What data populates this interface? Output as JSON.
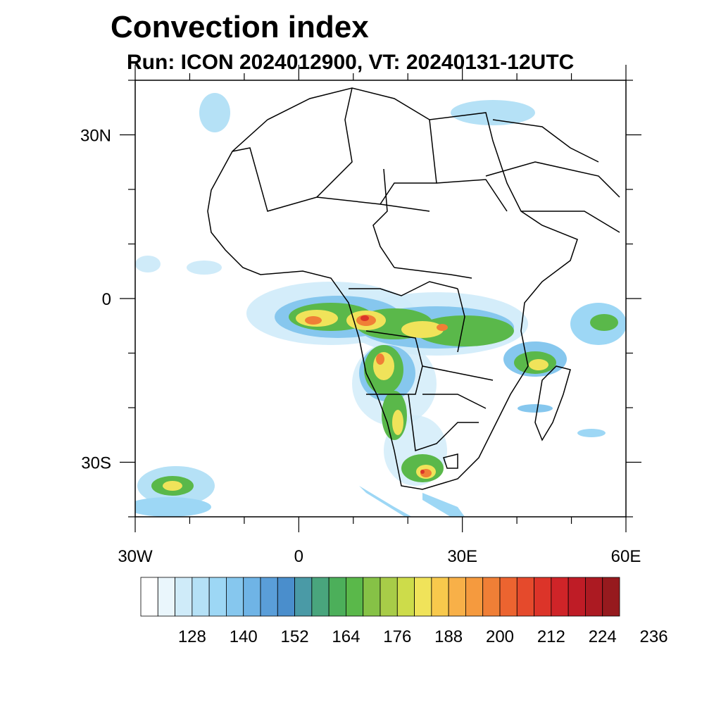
{
  "title": "Convection index",
  "subtitle": "Run: ICON 2024012900,  VT: 20240131-12UTC",
  "axes": {
    "lon_min": -30,
    "lon_max": 60,
    "lat_min": -40,
    "lat_max": 40,
    "lon_ticks": [
      {
        "value": -30,
        "label": "30W"
      },
      {
        "value": 0,
        "label": "0"
      },
      {
        "value": 30,
        "label": "30E"
      },
      {
        "value": 60,
        "label": "60E"
      }
    ],
    "lat_ticks": [
      {
        "value": 30,
        "label": "30N"
      },
      {
        "value": 0,
        "label": "0"
      },
      {
        "value": -30,
        "label": "30S"
      }
    ]
  },
  "colorbar": {
    "colors": [
      "#ffffff",
      "#eaf6fc",
      "#cfebf9",
      "#b5e1f6",
      "#9dd7f5",
      "#86c7ee",
      "#6fb4e6",
      "#5a9ed9",
      "#4a8ecc",
      "#4a9aa6",
      "#49a57d",
      "#4caf5a",
      "#5ab84a",
      "#86c246",
      "#a8cc48",
      "#cddc4a",
      "#f0e35a",
      "#f8c94c",
      "#f8b048",
      "#f59a3e",
      "#f07f36",
      "#ec6430",
      "#e54a2c",
      "#dc3429",
      "#cf2428",
      "#bf1c26",
      "#ac1a22",
      "#961a1e"
    ],
    "labels": [
      "128",
      "140",
      "152",
      "164",
      "176",
      "188",
      "200",
      "212",
      "224",
      "236"
    ]
  }
}
